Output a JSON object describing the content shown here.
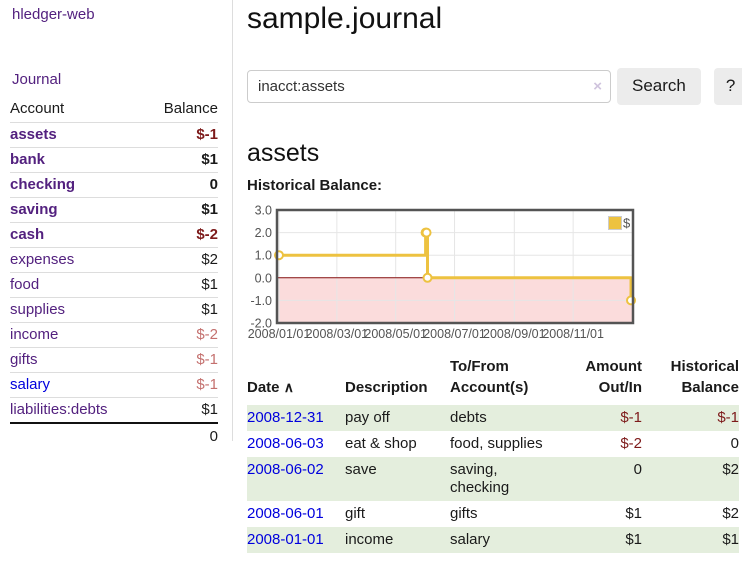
{
  "theme": {
    "link_purple": "#53217f",
    "link_blue": "#0000dd",
    "negative_red": "#7d1a1a",
    "muted_negative_red": "#c4706e",
    "row_green": "#e4eedd",
    "chart_line_yellow": "#EDC240",
    "chart_negative_bg": "#fbdcdc",
    "chart_zero_line": "#871010",
    "chart_border": "#545454"
  },
  "sidebar": {
    "app_title": "hledger-web",
    "journal_link": "Journal",
    "accounts_table": {
      "headers": {
        "account": "Account",
        "balance": "Balance"
      },
      "rows": [
        {
          "name": "assets",
          "depth": 1,
          "bold": true,
          "link_style": "purple",
          "balance": "$-1",
          "balance_style": "neg"
        },
        {
          "name": "bank",
          "depth": 2,
          "bold": true,
          "link_style": "purple",
          "balance": "$1",
          "balance_style": "pos"
        },
        {
          "name": "checking",
          "depth": 3,
          "bold": true,
          "link_style": "purple",
          "balance": "0",
          "balance_style": "pos"
        },
        {
          "name": "saving",
          "depth": 3,
          "bold": true,
          "link_style": "purple",
          "balance": "$1",
          "balance_style": "pos"
        },
        {
          "name": "cash",
          "depth": 2,
          "bold": true,
          "link_style": "purple",
          "balance": "$-2",
          "balance_style": "neg"
        },
        {
          "name": "expenses",
          "depth": 1,
          "bold": false,
          "link_style": "purple",
          "balance": "$2",
          "balance_style": "pos"
        },
        {
          "name": "food",
          "depth": 2,
          "bold": false,
          "link_style": "purple",
          "balance": "$1",
          "balance_style": "pos"
        },
        {
          "name": "supplies",
          "depth": 2,
          "bold": false,
          "link_style": "purple",
          "balance": "$1",
          "balance_style": "pos"
        },
        {
          "name": "income",
          "depth": 1,
          "bold": false,
          "link_style": "purple",
          "balance": "$-2",
          "balance_style": "rose"
        },
        {
          "name": "gifts",
          "depth": 2,
          "bold": false,
          "link_style": "purple",
          "balance": "$-1",
          "balance_style": "rose"
        },
        {
          "name": "salary",
          "depth": 2,
          "bold": false,
          "link_style": "blue",
          "balance": "$-1",
          "balance_style": "rose"
        },
        {
          "name": "liabilities:debts",
          "depth": 1,
          "bold": false,
          "link_style": "purple",
          "balance": "$1",
          "balance_style": "pos",
          "last": true
        }
      ],
      "total": "0"
    }
  },
  "header": {
    "title": "sample.journal"
  },
  "search": {
    "value": "inacct:assets",
    "clear_icon": "×",
    "button_label": "Search",
    "help_label": "?"
  },
  "account_page": {
    "heading": "assets",
    "chart_title": "Historical Balance:"
  },
  "chart_data": {
    "type": "line",
    "style": "step",
    "title": "Historical Balance:",
    "series": [
      {
        "name": "$",
        "color": "#EDC240",
        "points": [
          [
            "2008-01-01",
            1
          ],
          [
            "2008-06-01",
            2
          ],
          [
            "2008-06-02",
            2
          ],
          [
            "2008-06-03",
            0
          ],
          [
            "2008-12-31",
            -1
          ]
        ]
      }
    ],
    "xlim": [
      "2008-01-01",
      "2008-12-31"
    ],
    "ylim": [
      -2,
      3
    ],
    "xticks": [
      "2008/01/01",
      "2008/03/01",
      "2008/05/01",
      "2008/07/01",
      "2008/09/01",
      "2008/11/01"
    ],
    "yticks": [
      "3.0",
      "2.0",
      "1.0",
      "0.0",
      "-1.0",
      "-2.0"
    ],
    "legend": {
      "label": "$",
      "position": "top-right"
    },
    "grid": true,
    "negative_region_color": "#fbdcdc",
    "zero_line_color": "#871010"
  },
  "register": {
    "headers": {
      "date": "Date",
      "sort_icon": "∧",
      "description": "Description",
      "tofrom": "To/From\nAccount(s)",
      "amount": "Amount\nOut/In",
      "balance": "Historical\nBalance"
    },
    "rows": [
      {
        "date": "2008-12-31",
        "description": "pay off",
        "accounts": "debts",
        "amount": "$-1",
        "amount_style": "neg",
        "balance": "$-1",
        "balance_style": "neg",
        "shaded": true
      },
      {
        "date": "2008-06-03",
        "description": "eat & shop",
        "accounts": "food, supplies",
        "amount": "$-2",
        "amount_style": "neg",
        "balance": "0",
        "balance_style": "pos",
        "shaded": false
      },
      {
        "date": "2008-06-02",
        "description": "save",
        "accounts": "saving,\nchecking",
        "amount": "0",
        "amount_style": "pos",
        "balance": "$2",
        "balance_style": "pos",
        "shaded": true
      },
      {
        "date": "2008-06-01",
        "description": "gift",
        "accounts": "gifts",
        "amount": "$1",
        "amount_style": "pos",
        "balance": "$2",
        "balance_style": "pos",
        "shaded": false
      },
      {
        "date": "2008-01-01",
        "description": "income",
        "accounts": "salary",
        "amount": "$1",
        "amount_style": "pos",
        "balance": "$1",
        "balance_style": "pos",
        "shaded": true
      }
    ]
  }
}
